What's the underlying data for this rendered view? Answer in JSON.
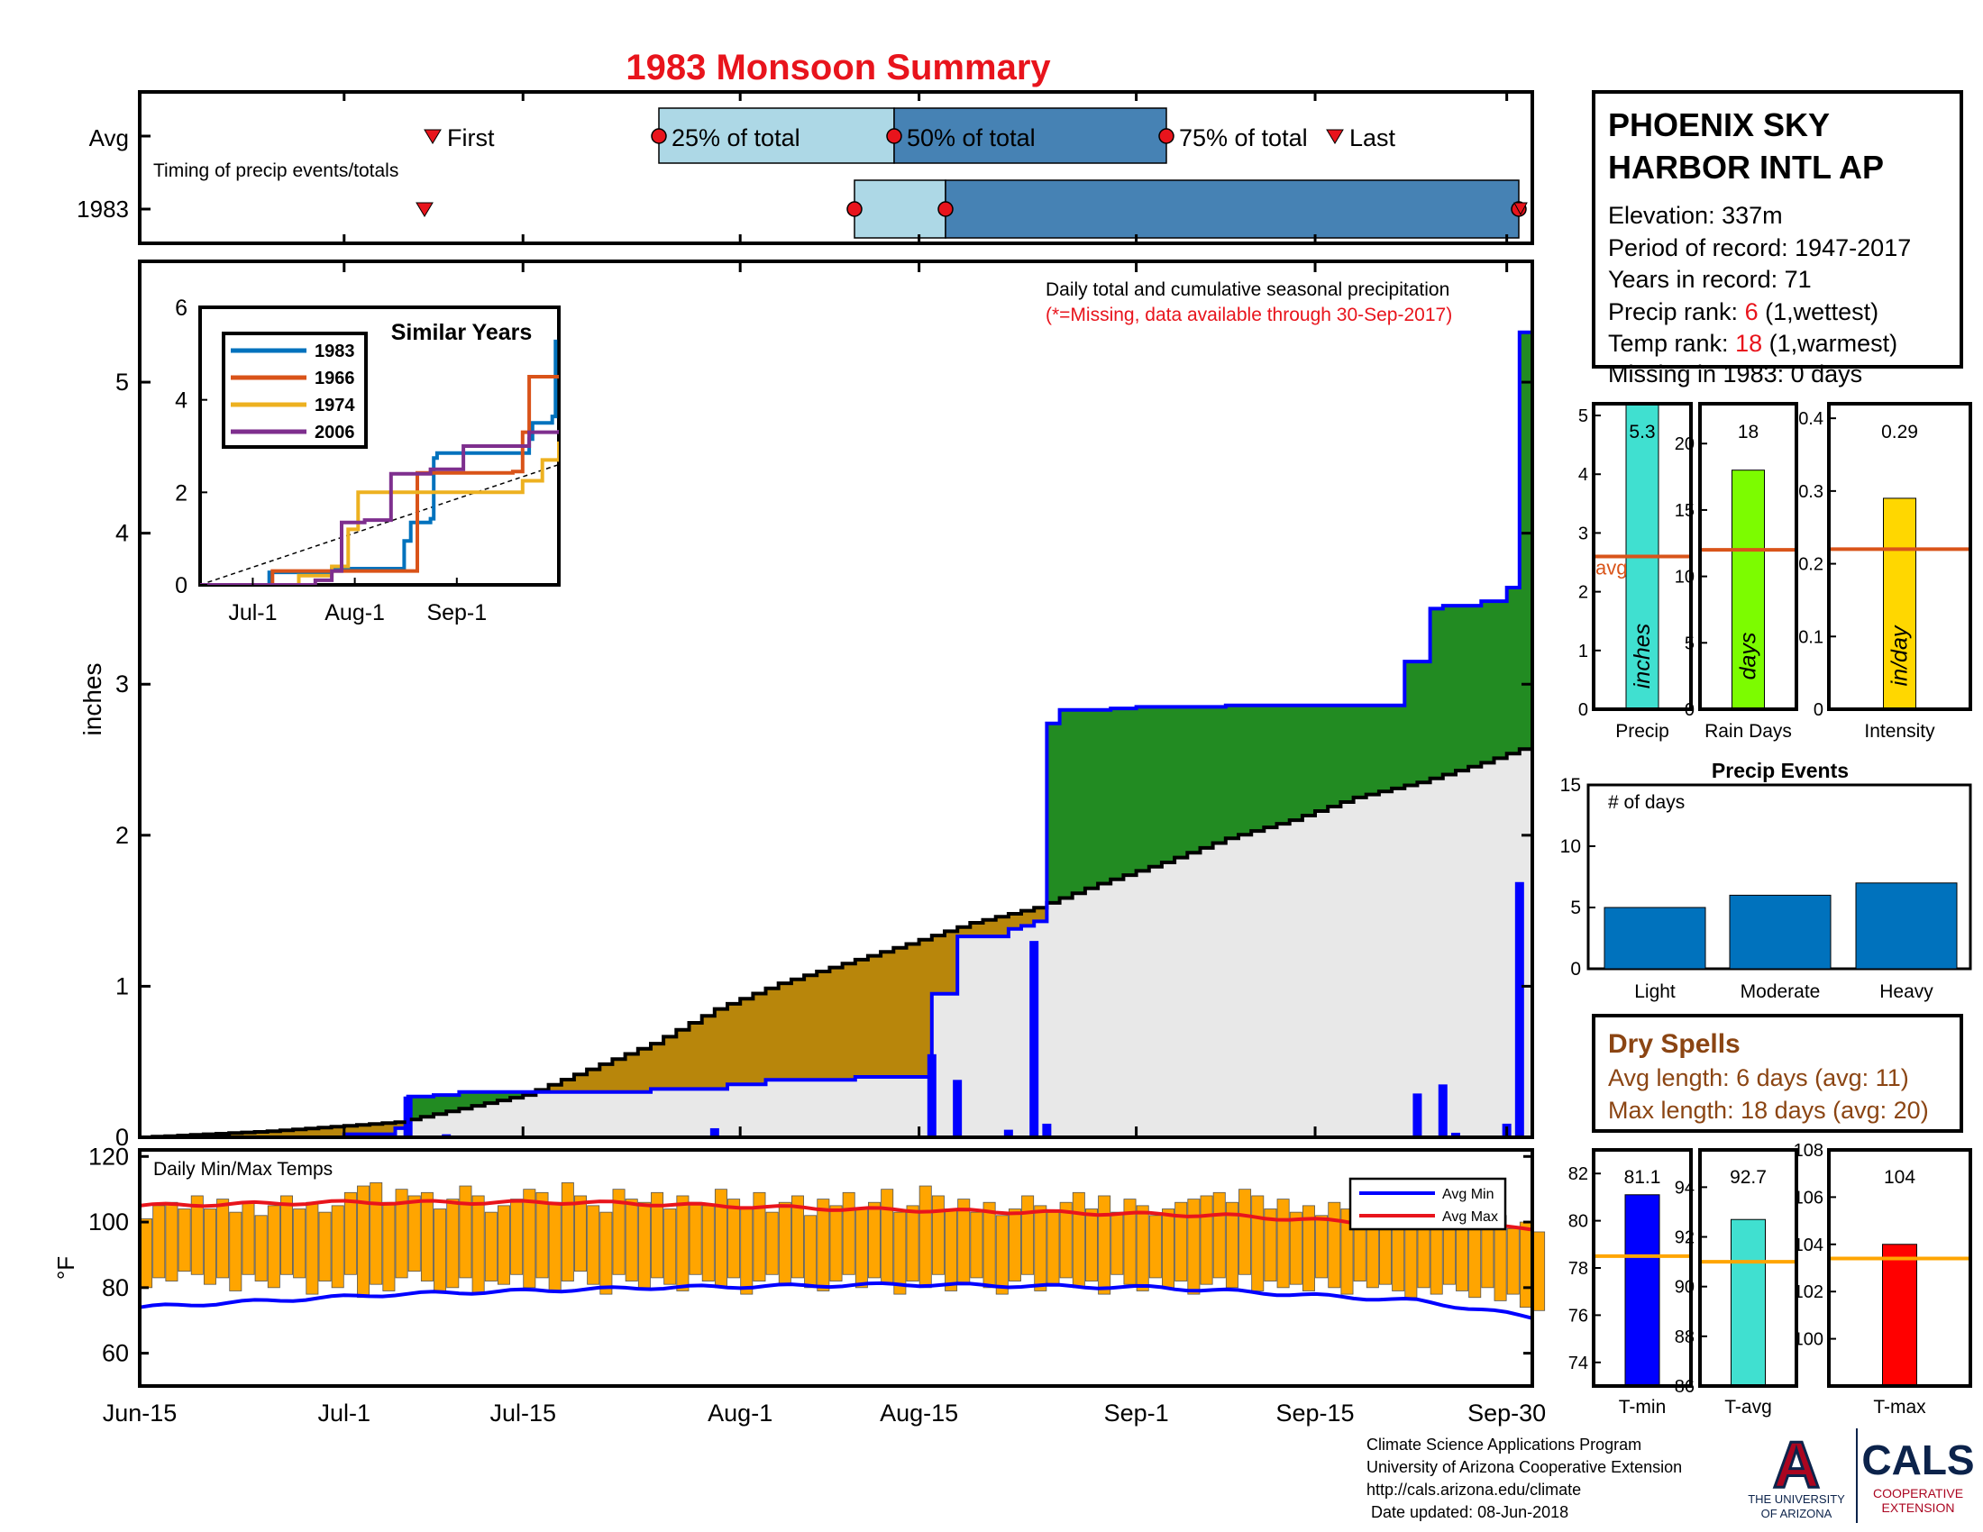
{
  "title": "1983 Monsoon Summary",
  "colors": {
    "title": "#e8141c",
    "green": "#228b22",
    "brown": "#b8860b",
    "grey": "#e8e8e8",
    "blue": "#0000ff",
    "red": "#e8141c",
    "orange_bars": "#ffa500",
    "light_band": "#add8e6",
    "dark_band": "#4682b4",
    "avg_line": "#d9541a",
    "dry": "#8b4513",
    "event_bar": "#0072bd"
  },
  "station": {
    "name_lines": [
      "PHOENIX SKY",
      "HARBOR INTL AP"
    ],
    "elevation": "Elevation: 337m",
    "period": "Period of record: 1947-2017",
    "years": "Years in record: 71",
    "precip_rank_label": "Precip rank: ",
    "precip_rank_value": "6",
    "precip_rank_note": " (1,wettest)",
    "temp_rank_label": "Temp rank: ",
    "temp_rank_value": "18",
    "temp_rank_note": " (1,warmest)",
    "missing": "Missing in 1983: 0 days"
  },
  "timing": {
    "row_labels": [
      "Avg",
      "1983"
    ],
    "caption": "Timing of precip events/totals",
    "labels": {
      "first": "First",
      "p25": "25% of total",
      "p50": "50% of total",
      "p75": "75% of total",
      "last": "Last"
    },
    "avg": {
      "first": "Jul-7",
      "p25": "Jul-25",
      "p50": "Aug-12",
      "p75": "Sep-2",
      "last": "Sep-15"
    },
    "y1983": {
      "first": "Jul-6",
      "p25": "Aug-8",
      "p50": "Aug-15",
      "p75": "Sep-29",
      "last": "Sep-29"
    }
  },
  "main": {
    "note1": "Daily total and cumulative seasonal precipitation",
    "note2": "(*=Missing, data available through 30-Sep-2017)",
    "ylabel": "inches",
    "x_ticks": [
      "Jun-15",
      "Jul-1",
      "Jul-15",
      "Aug-1",
      "Aug-15",
      "Sep-1",
      "Sep-15",
      "Sep-30"
    ],
    "y_ticks": [
      "0",
      "1",
      "2",
      "3",
      "4",
      "5"
    ]
  },
  "inset": {
    "title": "Similar Years",
    "x_ticks": [
      "Jul-1",
      "Aug-1",
      "Sep-1"
    ],
    "y_ticks": [
      "0",
      "2",
      "4",
      "6"
    ],
    "legend": [
      "1983",
      "1966",
      "1974",
      "2006"
    ]
  },
  "temps": {
    "label": "Daily Min/Max Temps",
    "ylabel": "°F",
    "y_ticks": [
      "60",
      "80",
      "100",
      "120"
    ],
    "legend": [
      "Avg Min",
      "Avg Max"
    ]
  },
  "mini_bars": [
    {
      "label": "Precip",
      "value_text": "5.3",
      "unit": "inches",
      "avg_label": "avg",
      "ticks": [
        "0",
        "1",
        "2",
        "3",
        "4",
        "5"
      ]
    },
    {
      "label": "Rain Days",
      "value_text": "18",
      "unit": "days",
      "ticks": [
        "0",
        "5",
        "10",
        "15",
        "20"
      ]
    },
    {
      "label": "Intensity",
      "value_text": "0.29",
      "unit": "in/day",
      "ticks": [
        "0",
        "0.1",
        "0.2",
        "0.3",
        "0.4"
      ]
    }
  ],
  "events": {
    "title": "Precip Events",
    "ylabel": "# of days",
    "categories": [
      "Light",
      "Moderate",
      "Heavy"
    ],
    "ticks": [
      "0",
      "5",
      "10",
      "15"
    ]
  },
  "dry_spells": {
    "title": "Dry Spells",
    "avg_length": "Avg length: 6 days (avg: 11)",
    "max_length": "Max length: 18 days (avg: 20)"
  },
  "temp_bars": [
    {
      "label": "T-min",
      "value_text": "81.1",
      "ticks": [
        "74",
        "76",
        "78",
        "80",
        "82"
      ]
    },
    {
      "label": "T-avg",
      "value_text": "92.7",
      "ticks": [
        "86",
        "88",
        "90",
        "92",
        "94"
      ]
    },
    {
      "label": "T-max",
      "value_text": "104",
      "ticks": [
        "100",
        "102",
        "104",
        "106",
        "108"
      ]
    }
  ],
  "footer": {
    "lines": [
      "Climate Science Applications Program",
      "University of Arizona Cooperative Extension",
      "http://cals.arizona.edu/climate",
      " Date updated: 08-Jun-2018"
    ],
    "ua_logo": "A",
    "ua_text": [
      "THE UNIVERSITY",
      "OF ARIZONA"
    ],
    "cals_logo": "CALS",
    "cals_text": [
      "COOPERATIVE",
      "EXTENSION"
    ]
  },
  "chart_data": [
    {
      "type": "area",
      "title": "1983 Monsoon Summary",
      "ylabel": "inches",
      "x_range": [
        "Jun-15",
        "Sep-30"
      ],
      "ylim": [
        0,
        5.8
      ],
      "cumulative_1983": [
        [
          0,
          0.0
        ],
        [
          16,
          0.02
        ],
        [
          17,
          0.02
        ],
        [
          20,
          0.06
        ],
        [
          21,
          0.27
        ],
        [
          21.5,
          0.27
        ],
        [
          22,
          0.27
        ],
        [
          23,
          0.28
        ],
        [
          25,
          0.3
        ],
        [
          31,
          0.3
        ],
        [
          34,
          0.3
        ],
        [
          40,
          0.32
        ],
        [
          44,
          0.32
        ],
        [
          46,
          0.35
        ],
        [
          49,
          0.38
        ],
        [
          56,
          0.4
        ],
        [
          60,
          0.4
        ],
        [
          61,
          0.4
        ],
        [
          62,
          0.95
        ],
        [
          63,
          0.95
        ],
        [
          64,
          1.33
        ],
        [
          66,
          1.33
        ],
        [
          68,
          1.38
        ],
        [
          69,
          1.4
        ],
        [
          70,
          1.43
        ],
        [
          71,
          2.74
        ],
        [
          72,
          2.83
        ],
        [
          73,
          2.83
        ],
        [
          76,
          2.84
        ],
        [
          78,
          2.85
        ],
        [
          80,
          2.85
        ],
        [
          85,
          2.86
        ],
        [
          98,
          2.86
        ],
        [
          99,
          3.15
        ],
        [
          100,
          3.15
        ],
        [
          101,
          3.5
        ],
        [
          102,
          3.52
        ],
        [
          104,
          3.52
        ],
        [
          105,
          3.55
        ],
        [
          106,
          3.55
        ],
        [
          107,
          3.64
        ],
        [
          108,
          5.33
        ],
        [
          109,
          5.33
        ]
      ],
      "normal_cumulative": [
        [
          0,
          0.0
        ],
        [
          10,
          0.04
        ],
        [
          20,
          0.1
        ],
        [
          30,
          0.28
        ],
        [
          35,
          0.45
        ],
        [
          40,
          0.62
        ],
        [
          45,
          0.85
        ],
        [
          50,
          1.02
        ],
        [
          55,
          1.15
        ],
        [
          60,
          1.28
        ],
        [
          65,
          1.42
        ],
        [
          70,
          1.52
        ],
        [
          75,
          1.68
        ],
        [
          80,
          1.82
        ],
        [
          85,
          1.98
        ],
        [
          90,
          2.1
        ],
        [
          95,
          2.25
        ],
        [
          100,
          2.35
        ],
        [
          105,
          2.48
        ],
        [
          109,
          2.6
        ]
      ],
      "daily_totals": [
        [
          21,
          0.27
        ],
        [
          24,
          0.02
        ],
        [
          45,
          0.06
        ],
        [
          62,
          0.55
        ],
        [
          64,
          0.38
        ],
        [
          68,
          0.05
        ],
        [
          70,
          1.3
        ],
        [
          71,
          0.09
        ],
        [
          100,
          0.29
        ],
        [
          102,
          0.35
        ],
        [
          103,
          0.03
        ],
        [
          107,
          0.09
        ],
        [
          108,
          1.69
        ]
      ]
    },
    {
      "type": "line",
      "title": "Similar Years",
      "x_ticks": [
        "Jul-1",
        "Aug-1",
        "Sep-1"
      ],
      "ylim": [
        0,
        6
      ],
      "series": [
        {
          "name": "1983",
          "points": [
            [
              0,
              0
            ],
            [
              21,
              0.27
            ],
            [
              40,
              0.35
            ],
            [
              62,
              0.95
            ],
            [
              64,
              1.35
            ],
            [
              70,
              1.43
            ],
            [
              71,
              2.74
            ],
            [
              72,
              2.85
            ],
            [
              100,
              3.15
            ],
            [
              101,
              3.5
            ],
            [
              107,
              3.64
            ],
            [
              108,
              5.3
            ]
          ]
        },
        {
          "name": "1966",
          "points": [
            [
              0,
              0
            ],
            [
              22,
              0.3
            ],
            [
              40,
              0.3
            ],
            [
              55,
              0.3
            ],
            [
              60,
              0.3
            ],
            [
              62,
              0.3
            ],
            [
              66,
              2.42
            ],
            [
              95,
              2.45
            ],
            [
              98,
              3.3
            ],
            [
              100,
              4.5
            ],
            [
              109,
              4.5
            ]
          ]
        },
        {
          "name": "1974",
          "points": [
            [
              0,
              0
            ],
            [
              30,
              0.2
            ],
            [
              40,
              0.4
            ],
            [
              45,
              1.2
            ],
            [
              48,
              2.0
            ],
            [
              60,
              2.0
            ],
            [
              90,
              2.0
            ],
            [
              98,
              2.25
            ],
            [
              104,
              2.7
            ],
            [
              109,
              3.1
            ]
          ]
        },
        {
          "name": "2006",
          "points": [
            [
              0,
              0
            ],
            [
              35,
              0.1
            ],
            [
              40,
              0.3
            ],
            [
              43,
              1.35
            ],
            [
              50,
              1.4
            ],
            [
              58,
              2.4
            ],
            [
              70,
              2.5
            ],
            [
              80,
              3.0
            ],
            [
              100,
              3.3
            ],
            [
              109,
              3.35
            ]
          ]
        }
      ]
    },
    {
      "type": "bar",
      "title": "Daily Min/Max Temps",
      "ylim": [
        50,
        122
      ],
      "avg_min": [
        [
          0,
          74
        ],
        [
          20,
          78
        ],
        [
          40,
          80
        ],
        [
          60,
          81
        ],
        [
          80,
          80
        ],
        [
          90,
          78
        ],
        [
          100,
          76
        ],
        [
          109,
          71
        ]
      ],
      "avg_max": [
        [
          0,
          105
        ],
        [
          15,
          106
        ],
        [
          35,
          106
        ],
        [
          55,
          104
        ],
        [
          70,
          103
        ],
        [
          85,
          102
        ],
        [
          95,
          100
        ],
        [
          109,
          98
        ]
      ],
      "daily_max": [
        101,
        105,
        106,
        104,
        108,
        104,
        107,
        103,
        106,
        102,
        105,
        108,
        104,
        106,
        103,
        105,
        109,
        111,
        112,
        106,
        110,
        108,
        109,
        104,
        107,
        111,
        108,
        103,
        105,
        107,
        110,
        109,
        106,
        112,
        108,
        105,
        103,
        110,
        107,
        106,
        109,
        104,
        108,
        106,
        105,
        110,
        107,
        104,
        109,
        103,
        106,
        108,
        102,
        107,
        105,
        109,
        104,
        106,
        110,
        103,
        105,
        111,
        108,
        104,
        107,
        103,
        106,
        102,
        104,
        108,
        105,
        103,
        106,
        109,
        104,
        108,
        103,
        107,
        105,
        102,
        104,
        106,
        107,
        108,
        109,
        106,
        110,
        108,
        104,
        107,
        103,
        105,
        102,
        106,
        104,
        108,
        106,
        101,
        104,
        103,
        105,
        102,
        100,
        104,
        103,
        99,
        102,
        98,
        100,
        97
      ],
      "daily_min": [
        80,
        83,
        82,
        85,
        84,
        81,
        83,
        79,
        84,
        82,
        80,
        84,
        83,
        78,
        82,
        80,
        84,
        77,
        81,
        79,
        83,
        85,
        82,
        79,
        80,
        83,
        78,
        82,
        81,
        84,
        80,
        83,
        79,
        82,
        85,
        81,
        78,
        84,
        82,
        80,
        83,
        81,
        79,
        84,
        82,
        80,
        83,
        78,
        82,
        84,
        81,
        83,
        80,
        79,
        82,
        84,
        80,
        83,
        81,
        78,
        82,
        80,
        84,
        79,
        81,
        83,
        80,
        78,
        82,
        84,
        79,
        81,
        83,
        80,
        82,
        78,
        84,
        81,
        79,
        83,
        80,
        82,
        78,
        81,
        83,
        80,
        84,
        79,
        82,
        80,
        81,
        79,
        83,
        80,
        78,
        82,
        80,
        81,
        79,
        77,
        80,
        78,
        81,
        79,
        77,
        80,
        76,
        78,
        74,
        73
      ]
    },
    {
      "type": "bar",
      "title": "Precip",
      "categories": [
        "Precip",
        "Rain Days",
        "Intensity"
      ],
      "values": [
        5.3,
        18,
        0.29
      ],
      "averages": [
        2.6,
        12,
        0.22
      ],
      "ylims": [
        [
          0,
          5.2
        ],
        [
          0,
          23
        ],
        [
          0,
          0.42
        ]
      ]
    },
    {
      "type": "bar",
      "title": "Precip Events",
      "ylabel": "# of days",
      "categories": [
        "Light",
        "Moderate",
        "Heavy"
      ],
      "values": [
        5,
        6,
        7
      ],
      "ylim": [
        0,
        15
      ]
    },
    {
      "type": "bar",
      "categories": [
        "T-min",
        "T-avg",
        "T-max"
      ],
      "values": [
        81.1,
        92.7,
        104
      ],
      "averages": [
        78.5,
        91.0,
        103.4
      ],
      "ylims": [
        [
          73,
          83
        ],
        [
          86,
          95.5
        ],
        [
          98,
          108
        ]
      ]
    }
  ]
}
